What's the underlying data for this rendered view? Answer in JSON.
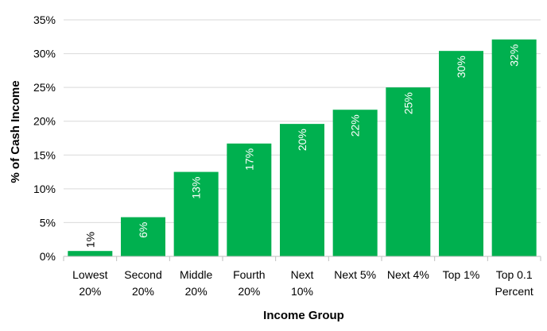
{
  "chart_data": {
    "type": "bar",
    "title": "",
    "xlabel": "Income Group",
    "ylabel": "% of Cash Income",
    "ylim": [
      0,
      35
    ],
    "y_ticks": [
      "0%",
      "5%",
      "10%",
      "15%",
      "20%",
      "25%",
      "30%",
      "35%"
    ],
    "categories": [
      [
        "Lowest",
        "20%"
      ],
      [
        "Second",
        "20%"
      ],
      [
        "Middle",
        "20%"
      ],
      [
        "Fourth",
        "20%"
      ],
      [
        "Next",
        "10%"
      ],
      [
        "Next 5%"
      ],
      [
        "Next 4%"
      ],
      [
        "Top 1%"
      ],
      [
        "Top 0.1",
        "Percent"
      ]
    ],
    "values": [
      0.8,
      5.8,
      12.5,
      16.7,
      19.6,
      21.7,
      25.0,
      30.4,
      32.1
    ],
    "data_labels": [
      "1%",
      "6%",
      "13%",
      "17%",
      "20%",
      "22%",
      "25%",
      "30%",
      "32%"
    ],
    "grid": true,
    "legend": "none",
    "bar_color": "#00b04f"
  }
}
